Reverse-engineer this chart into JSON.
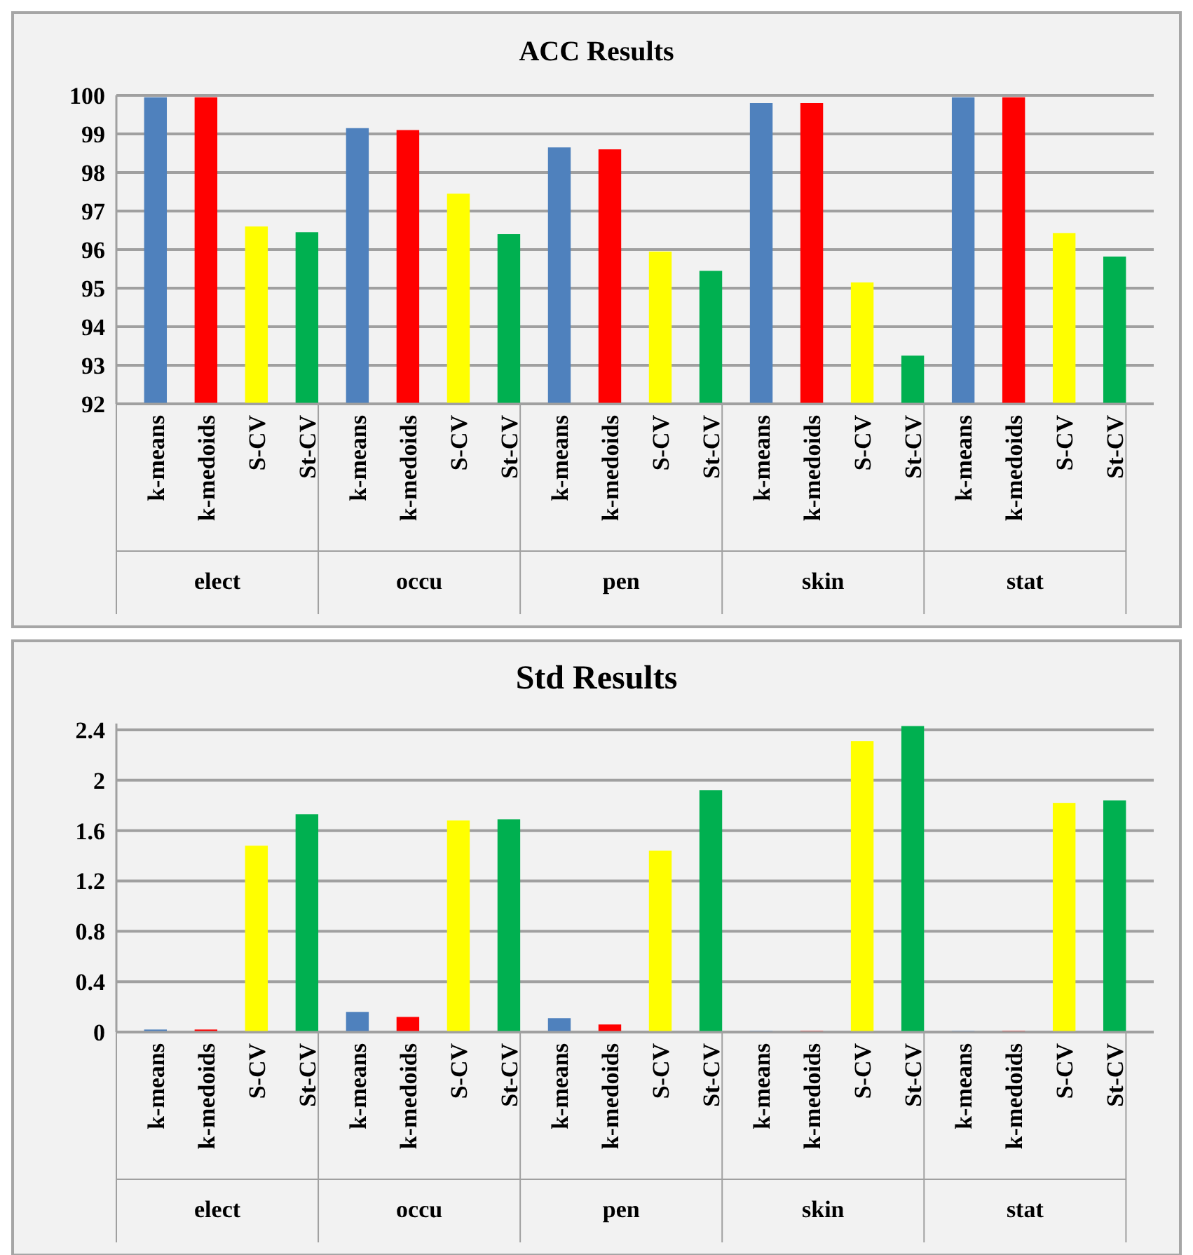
{
  "chart_data": [
    {
      "type": "bar",
      "title": "ACC Results",
      "categories": [
        "k-means",
        "k-medoids",
        "S-CV",
        "St-CV",
        "k-means",
        "k-medoids",
        "S-CV",
        "St-CV",
        "k-means",
        "k-medoids",
        "S-CV",
        "St-CV",
        "k-means",
        "k-medoids",
        "S-CV",
        "St-CV",
        "k-means",
        "k-medoids",
        "S-CV",
        "St-CV"
      ],
      "annotations": [
        "elect",
        "occu",
        "pen",
        "skin",
        "stat"
      ],
      "ylim": [
        92,
        100
      ],
      "yticks": [
        92,
        93,
        94,
        95,
        96,
        97,
        98,
        99,
        100
      ],
      "grid": "y",
      "values": [
        99.95,
        99.95,
        96.6,
        96.45,
        99.15,
        99.1,
        97.45,
        96.4,
        98.65,
        98.6,
        95.95,
        95.45,
        99.8,
        99.8,
        95.15,
        93.25,
        99.95,
        99.95,
        96.43,
        95.82
      ],
      "colors": [
        "#4f81bd",
        "#ff0000",
        "#ffff00",
        "#00b050",
        "#4f81bd",
        "#ff0000",
        "#ffff00",
        "#00b050",
        "#4f81bd",
        "#ff0000",
        "#ffff00",
        "#00b050",
        "#4f81bd",
        "#ff0000",
        "#ffff00",
        "#00b050",
        "#4f81bd",
        "#ff0000",
        "#ffff00",
        "#00b050"
      ]
    },
    {
      "type": "bar",
      "title": "Std Results",
      "categories": [
        "k-means",
        "k-medoids",
        "S-CV",
        "St-CV",
        "k-means",
        "k-medoids",
        "S-CV",
        "St-CV",
        "k-means",
        "k-medoids",
        "S-CV",
        "St-CV",
        "k-means",
        "k-medoids",
        "S-CV",
        "St-CV",
        "k-means",
        "k-medoids",
        "S-CV",
        "St-CV"
      ],
      "annotations": [
        "elect",
        "occu",
        "pen",
        "skin",
        "stat"
      ],
      "ylim": [
        0,
        2.45
      ],
      "yticks": [
        0,
        0.4,
        0.8,
        1.2,
        1.6,
        2,
        2.4
      ],
      "grid": "y",
      "values": [
        0.02,
        0.02,
        1.48,
        1.73,
        0.16,
        0.12,
        1.68,
        1.69,
        0.11,
        0.06,
        1.44,
        1.92,
        0.01,
        0.01,
        2.31,
        2.43,
        0.01,
        0.01,
        1.82,
        1.84
      ],
      "colors": [
        "#4f81bd",
        "#ff0000",
        "#ffff00",
        "#00b050",
        "#4f81bd",
        "#ff0000",
        "#ffff00",
        "#00b050",
        "#4f81bd",
        "#ff0000",
        "#ffff00",
        "#00b050",
        "#4f81bd",
        "#ff0000",
        "#ffff00",
        "#00b050",
        "#4f81bd",
        "#ff0000",
        "#ffff00",
        "#00b050"
      ]
    }
  ]
}
